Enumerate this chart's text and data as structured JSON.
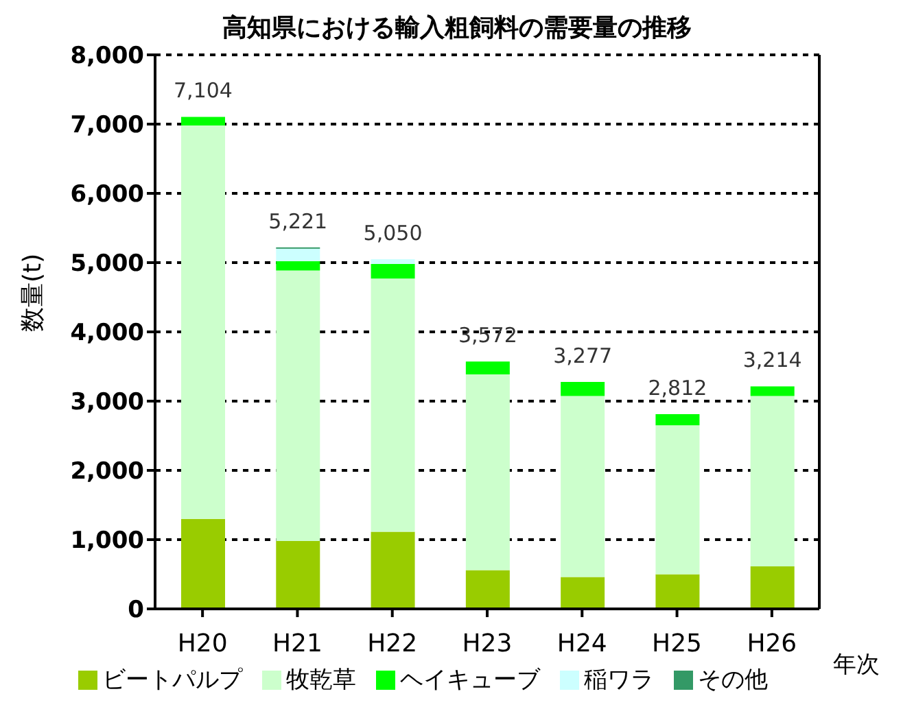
{
  "chart_data": {
    "type": "bar",
    "stacked": true,
    "title": "高知県における輸入粗飼料の需要量の推移",
    "xlabel": "年次",
    "ylabel": "数量(t)",
    "categories": [
      "H20",
      "H21",
      "H22",
      "H23",
      "H24",
      "H25",
      "H26"
    ],
    "series": [
      {
        "name": "ビートパルプ",
        "color": "#99cc00",
        "values": [
          1300,
          980,
          1115,
          560,
          460,
          500,
          615
        ]
      },
      {
        "name": "牧乾草",
        "color": "#ccffcc",
        "values": [
          5680,
          3905,
          3655,
          2825,
          2615,
          2150,
          2460
        ]
      },
      {
        "name": "ヘイキューブ",
        "color": "#00ff00",
        "values": [
          124,
          135,
          210,
          187,
          202,
          162,
          139
        ]
      },
      {
        "name": "稲ワラ",
        "color": "#ccffff",
        "values": [
          null,
          180,
          70,
          null,
          null,
          null,
          null
        ]
      },
      {
        "name": "その他",
        "color": "#339966",
        "values": [
          null,
          21,
          null,
          null,
          null,
          null,
          null
        ]
      }
    ],
    "totals": [
      "7,104",
      "5,221",
      "5,050",
      "3,572",
      "3,277",
      "2,812",
      "3,214"
    ],
    "ylim": [
      0,
      8000
    ],
    "yticks": [
      0,
      {
        "value": 1000,
        "label": "1,000"
      },
      {
        "value": 2000,
        "label": "2,000"
      },
      {
        "value": 3000,
        "label": "3,000"
      },
      {
        "value": 4000,
        "label": "4,000"
      },
      {
        "value": 5000,
        "label": "5,000"
      },
      {
        "value": 6000,
        "label": "6,000"
      },
      {
        "value": 7000,
        "label": "7,000"
      },
      {
        "value": 8000,
        "label": "8,000"
      }
    ],
    "grid": "y",
    "legend": "bottom"
  }
}
